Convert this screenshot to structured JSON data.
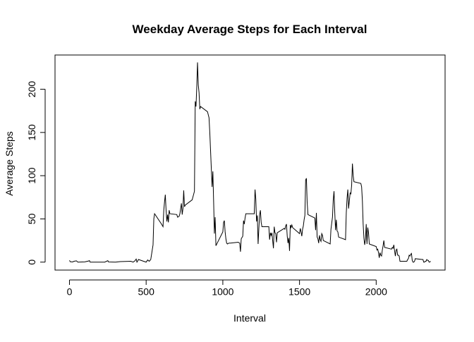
{
  "chart_data": {
    "type": "line",
    "title": "Weekday Average Steps for Each Interval",
    "x_label": "Interval",
    "y_label": "Average Steps",
    "color": "#000000",
    "xlim": [
      -94.2,
      2449.2
    ],
    "xticks": [
      0,
      500,
      1000,
      1500,
      2000
    ],
    "ylim": [
      -9.2,
      239.6
    ],
    "yticks": [
      0,
      50,
      100,
      150,
      200
    ],
    "x": [
      0,
      5,
      20,
      30,
      45,
      55,
      100,
      125,
      130,
      135,
      200,
      230,
      250,
      255,
      300,
      330,
      400,
      415,
      425,
      435,
      440,
      445,
      450,
      500,
      510,
      520,
      530,
      545,
      550,
      555,
      600,
      610,
      615,
      620,
      625,
      630,
      635,
      640,
      645,
      650,
      655,
      700,
      705,
      715,
      720,
      730,
      735,
      740,
      745,
      750,
      755,
      800,
      815,
      820,
      825,
      830,
      835,
      840,
      845,
      850,
      855,
      900,
      910,
      915,
      930,
      935,
      940,
      945,
      950,
      955,
      1000,
      1005,
      1010,
      1015,
      1020,
      1025,
      1030,
      1040,
      1050,
      1100,
      1110,
      1115,
      1120,
      1130,
      1135,
      1140,
      1145,
      1150,
      1200,
      1205,
      1210,
      1215,
      1220,
      1225,
      1230,
      1235,
      1240,
      1245,
      1250,
      1255,
      1300,
      1305,
      1310,
      1315,
      1320,
      1325,
      1330,
      1335,
      1340,
      1345,
      1350,
      1355,
      1400,
      1405,
      1410,
      1415,
      1420,
      1425,
      1430,
      1435,
      1440,
      1445,
      1450,
      1455,
      1500,
      1505,
      1510,
      1515,
      1520,
      1525,
      1530,
      1535,
      1540,
      1545,
      1550,
      1555,
      1600,
      1605,
      1610,
      1615,
      1620,
      1625,
      1630,
      1635,
      1640,
      1645,
      1650,
      1655,
      1700,
      1705,
      1710,
      1715,
      1720,
      1725,
      1730,
      1735,
      1740,
      1745,
      1750,
      1755,
      1800,
      1805,
      1810,
      1815,
      1820,
      1825,
      1830,
      1835,
      1840,
      1845,
      1850,
      1855,
      1900,
      1905,
      1910,
      1915,
      1920,
      1925,
      1930,
      1935,
      1940,
      1945,
      1950,
      1955,
      2000,
      2005,
      2010,
      2015,
      2020,
      2025,
      2030,
      2035,
      2040,
      2045,
      2050,
      2055,
      2100,
      2105,
      2110,
      2115,
      2120,
      2125,
      2130,
      2135,
      2140,
      2145,
      2150,
      2155,
      2200,
      2205,
      2210,
      2215,
      2220,
      2225,
      2230,
      2235,
      2240,
      2245,
      2250,
      2255,
      2300,
      2305,
      2310,
      2315,
      2320,
      2325,
      2330,
      2335,
      2340,
      2345,
      2350,
      2355
    ],
    "values": [
      2,
      0.5,
      0.2,
      1,
      1.5,
      0,
      0.3,
      1.3,
      1.8,
      0,
      0,
      0,
      1.7,
      0.2,
      0,
      0.6,
      1,
      0,
      1.2,
      3.5,
      0,
      1.4,
      3,
      0,
      2.5,
      1,
      3,
      20,
      50,
      56,
      44,
      41,
      60,
      70,
      78,
      60,
      47,
      55,
      46,
      60,
      56,
      55,
      52,
      53,
      56,
      68,
      55,
      62,
      83,
      64,
      66,
      72,
      82,
      186,
      180,
      202,
      231,
      205,
      196,
      177,
      180,
      174,
      167,
      150,
      87,
      105,
      70,
      33,
      52,
      19,
      35,
      46,
      48,
      35,
      27,
      22,
      21,
      22,
      22,
      23,
      22,
      12,
      27,
      30,
      48,
      44,
      51,
      56,
      56,
      56,
      84,
      73,
      47,
      54,
      21,
      39,
      55,
      60,
      46,
      41,
      41,
      26,
      34,
      31,
      34,
      25,
      16,
      41,
      34,
      33,
      23,
      34,
      39,
      38,
      42,
      44,
      30,
      22,
      28,
      13,
      43,
      40,
      43,
      40,
      33,
      39,
      35,
      30,
      38,
      42,
      49,
      54,
      95,
      97,
      69,
      55,
      51,
      37,
      57,
      29,
      27,
      22,
      31,
      26,
      24,
      33,
      31,
      25,
      21,
      38,
      45,
      52,
      72,
      82,
      57,
      37,
      49,
      36,
      35,
      29,
      26,
      57,
      74,
      84,
      62,
      71,
      80,
      79,
      89,
      114,
      100,
      93,
      91,
      87,
      71,
      44,
      28,
      20,
      26,
      44,
      21,
      40,
      34,
      21,
      18,
      14,
      15,
      11,
      5,
      11,
      8,
      7,
      14,
      19,
      25,
      17,
      15,
      17,
      16,
      20,
      13,
      7,
      14,
      15,
      8,
      8,
      7,
      1,
      1,
      3,
      4,
      8,
      7,
      9,
      10,
      2,
      0,
      0,
      1,
      4,
      3,
      3,
      0,
      0,
      1,
      1,
      3,
      2,
      2,
      0,
      0.2,
      1
    ]
  }
}
